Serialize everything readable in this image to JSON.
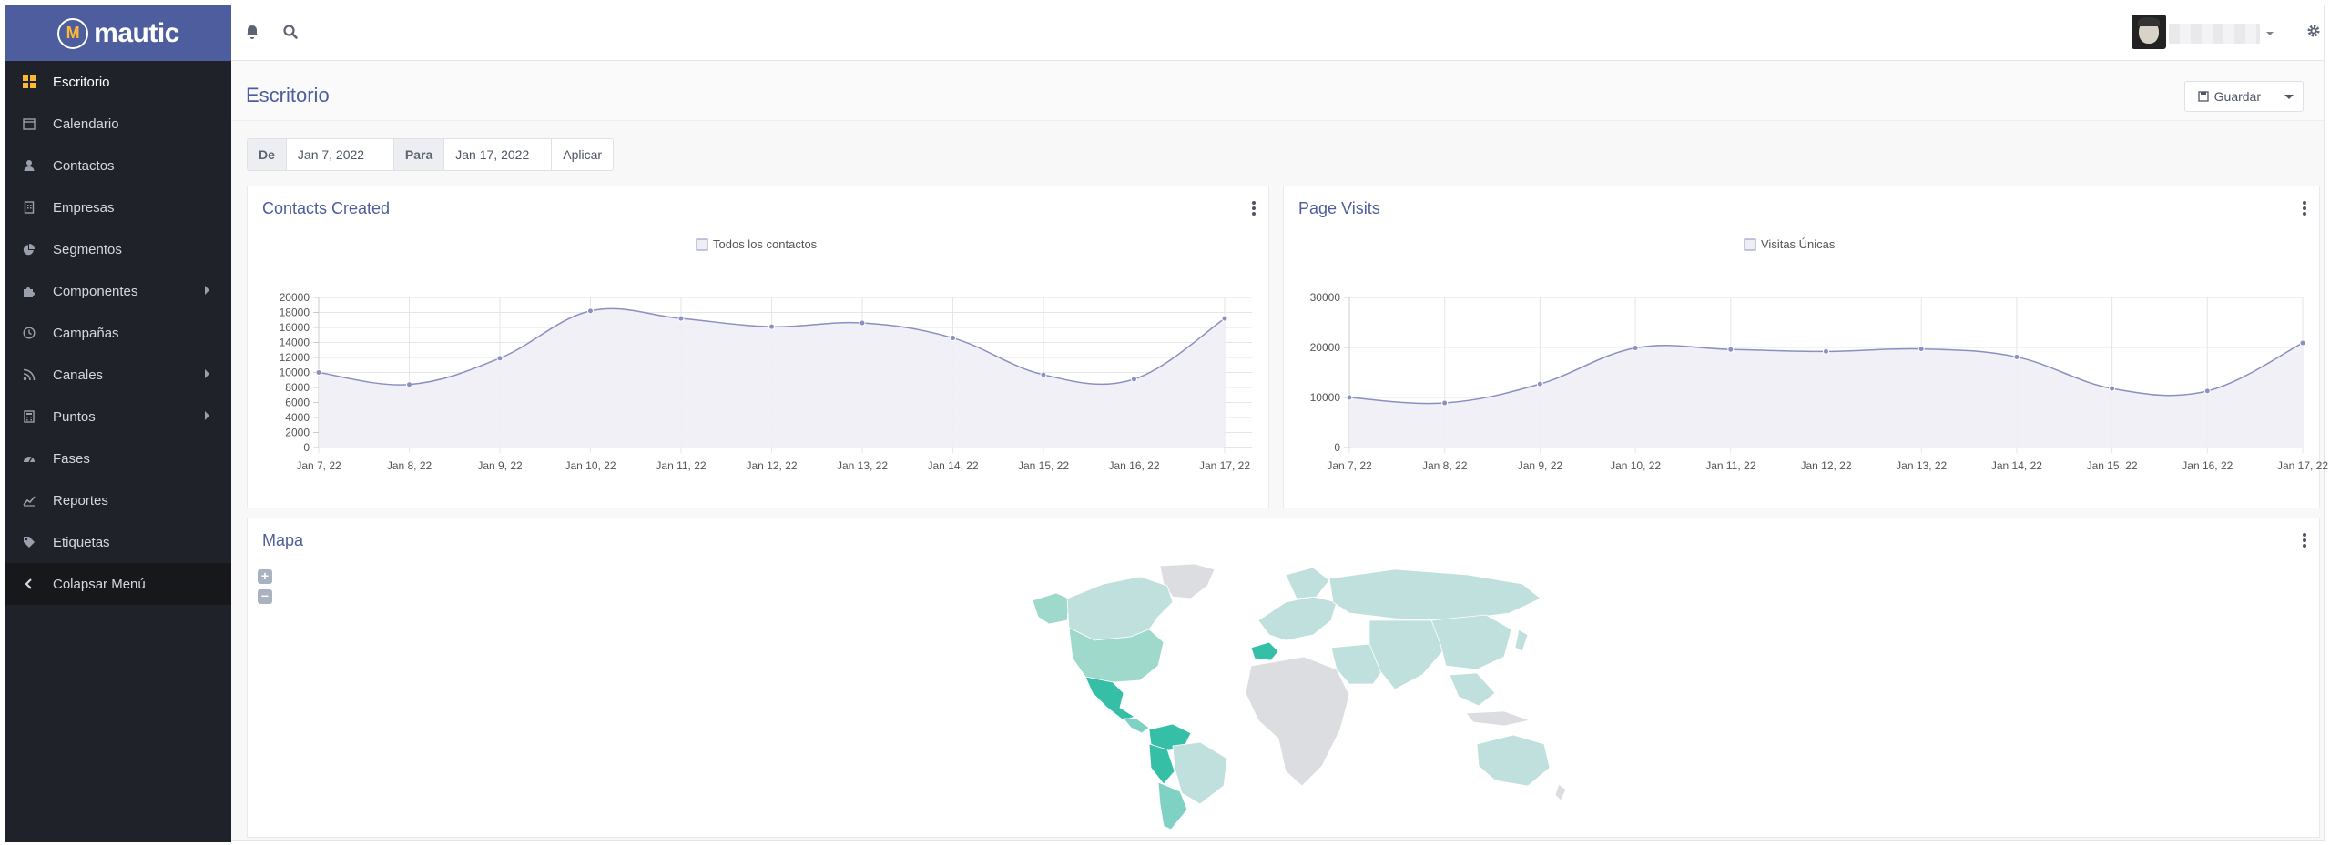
{
  "app": {
    "logo_text": "mautic",
    "logo_mark": "M"
  },
  "sidebar": {
    "items": [
      {
        "label": "Escritorio",
        "icon": "dashboard-grid-icon",
        "active": true,
        "has_submenu": false
      },
      {
        "label": "Calendario",
        "icon": "calendar-icon",
        "active": false,
        "has_submenu": false
      },
      {
        "label": "Contactos",
        "icon": "user-icon",
        "active": false,
        "has_submenu": false
      },
      {
        "label": "Empresas",
        "icon": "building-icon",
        "active": false,
        "has_submenu": false
      },
      {
        "label": "Segmentos",
        "icon": "pie-chart-icon",
        "active": false,
        "has_submenu": false
      },
      {
        "label": "Componentes",
        "icon": "puzzle-icon",
        "active": false,
        "has_submenu": true
      },
      {
        "label": "Campañas",
        "icon": "clock-icon",
        "active": false,
        "has_submenu": false
      },
      {
        "label": "Canales",
        "icon": "rss-icon",
        "active": false,
        "has_submenu": true
      },
      {
        "label": "Puntos",
        "icon": "calculator-icon",
        "active": false,
        "has_submenu": true
      },
      {
        "label": "Fases",
        "icon": "tachometer-icon",
        "active": false,
        "has_submenu": false
      },
      {
        "label": "Reportes",
        "icon": "line-chart-icon",
        "active": false,
        "has_submenu": false
      },
      {
        "label": "Etiquetas",
        "icon": "tag-icon",
        "active": false,
        "has_submenu": false
      }
    ],
    "collapse_label": "Colapsar Menú"
  },
  "header": {
    "icons": [
      "bell-icon",
      "search-icon",
      "gear-icon"
    ]
  },
  "page": {
    "title": "Escritorio",
    "save_label": "Guardar"
  },
  "date_filter": {
    "from_label": "De",
    "from_value": "Jan 7, 2022",
    "to_label": "Para",
    "to_value": "Jan 17, 2022",
    "apply_label": "Aplicar"
  },
  "widgets": {
    "contacts": {
      "title": "Contacts Created"
    },
    "visits": {
      "title": "Page Visits"
    },
    "map": {
      "title": "Mapa",
      "zoom_in": "+",
      "zoom_out": "−"
    }
  },
  "colors": {
    "brand": "#4e5d9d",
    "accent": "#fdb933",
    "sidebar_bg": "#1f2228",
    "line": "#8b8fc1",
    "area": "#eeeef5",
    "map_base": "#dcdde0",
    "map_light": "#bfe0dc",
    "map_mid": "#7fd1c3",
    "map_strong": "#35bfa6"
  },
  "chart_data": [
    {
      "type": "area",
      "title": "Contacts Created",
      "x": [
        "Jan 7, 22",
        "Jan 8, 22",
        "Jan 9, 22",
        "Jan 10, 22",
        "Jan 11, 22",
        "Jan 12, 22",
        "Jan 13, 22",
        "Jan 14, 22",
        "Jan 15, 22",
        "Jan 16, 22",
        "Jan 17, 22"
      ],
      "series": [
        {
          "name": "Todos los contactos",
          "values": [
            10000,
            8400,
            11900,
            18200,
            17200,
            16100,
            16600,
            14600,
            9700,
            9100,
            17200
          ]
        }
      ],
      "ylim": [
        0,
        20000
      ],
      "yticks": [
        0,
        2000,
        4000,
        6000,
        8000,
        10000,
        12000,
        14000,
        16000,
        18000,
        20000
      ],
      "legend": "top-center",
      "grid": true
    },
    {
      "type": "area",
      "title": "Page Visits",
      "x": [
        "Jan 7, 22",
        "Jan 8, 22",
        "Jan 9, 22",
        "Jan 10, 22",
        "Jan 11, 22",
        "Jan 12, 22",
        "Jan 13, 22",
        "Jan 14, 22",
        "Jan 15, 22",
        "Jan 16, 22",
        "Jan 17, 22"
      ],
      "series": [
        {
          "name": "Visitas Únicas",
          "values": [
            10000,
            8900,
            12700,
            19900,
            19600,
            19200,
            19700,
            18100,
            11800,
            11300,
            20900
          ]
        }
      ],
      "ylim": [
        0,
        30000
      ],
      "yticks": [
        0,
        10000,
        20000,
        30000
      ],
      "legend": "top-center",
      "grid": true
    }
  ]
}
